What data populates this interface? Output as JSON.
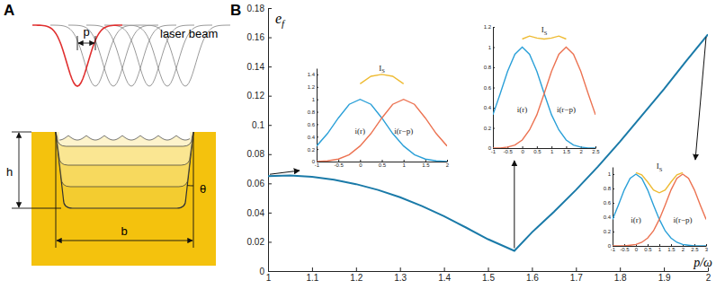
{
  "panel_labels": [
    "A",
    "B"
  ],
  "diagram": {
    "beam_label": "laser beam",
    "pitch": "p",
    "depth": "h",
    "angle": "θ",
    "width": "b"
  },
  "chart_data": [
    {
      "type": "line",
      "xlabel": "p/ω",
      "ylabel": "e",
      "ylabel_sub": "f",
      "x": [
        1,
        1.05,
        1.1,
        1.15,
        1.2,
        1.25,
        1.3,
        1.35,
        1.4,
        1.45,
        1.5,
        1.56,
        1.6,
        1.65,
        1.7,
        1.75,
        1.8,
        1.85,
        1.9,
        1.95,
        2
      ],
      "series": [
        {
          "color": "#1a7aa8",
          "values": [
            0.065,
            0.0655,
            0.0645,
            0.0625,
            0.0595,
            0.0555,
            0.0505,
            0.0445,
            0.0375,
            0.0298,
            0.0218,
            0.0138,
            0.0265,
            0.0405,
            0.0555,
            0.0715,
            0.0885,
            0.1065,
            0.1245,
            0.1435,
            0.162
          ]
        }
      ],
      "xlim": [
        1,
        2
      ],
      "ylim": [
        0,
        0.18
      ],
      "xticks": [
        1,
        1.1,
        1.2,
        1.3,
        1.4,
        1.5,
        1.6,
        1.7,
        1.8,
        1.9,
        2
      ],
      "yticks": [
        0,
        0.02,
        0.04,
        0.06,
        0.08,
        0.1,
        0.12,
        0.14,
        0.16,
        0.18
      ]
    },
    {
      "type": "line",
      "xlim": [
        -1,
        2
      ],
      "ylim": [
        0,
        1.5
      ],
      "xticks": [
        -1,
        -0.5,
        0,
        0.5,
        1,
        1.5,
        2
      ],
      "yticks": [
        0,
        0.2,
        0.4,
        0.6,
        0.8,
        1,
        1.2,
        1.4
      ],
      "series": [
        {
          "name": "i(r)",
          "color": "#2ba0d8",
          "x": [
            -1,
            -0.75,
            -0.5,
            -0.25,
            0,
            0.25,
            0.5,
            0.75,
            1,
            1.25,
            1.5,
            1.75,
            2
          ],
          "values": [
            0.25,
            0.45,
            0.7,
            0.92,
            1,
            0.92,
            0.7,
            0.45,
            0.25,
            0.11,
            0.04,
            0.01,
            0
          ]
        },
        {
          "name": "i(r−p)",
          "color": "#ec7352",
          "x": [
            -1,
            -0.75,
            -0.5,
            -0.25,
            0,
            0.25,
            0.5,
            0.75,
            1,
            1.25,
            1.5,
            1.75,
            2
          ],
          "values": [
            0,
            0.01,
            0.04,
            0.11,
            0.25,
            0.45,
            0.7,
            0.92,
            1,
            0.92,
            0.7,
            0.45,
            0.25
          ]
        },
        {
          "name": "I",
          "name_sub": "S",
          "color": "#eebb33",
          "x": [
            0,
            0.25,
            0.5,
            0.75,
            1
          ],
          "values": [
            1.25,
            1.37,
            1.4,
            1.37,
            1.25
          ]
        }
      ]
    },
    {
      "type": "line",
      "xlim": [
        -1,
        2.5
      ],
      "ylim": [
        0,
        1.2
      ],
      "xticks": [
        -1,
        -0.5,
        0,
        0.5,
        1,
        1.5,
        2,
        2.5
      ],
      "yticks": [
        0,
        0.2,
        0.4,
        0.6,
        0.8,
        1,
        1.2
      ],
      "series": [
        {
          "name": "i(r)",
          "color": "#2ba0d8",
          "x": [
            -1,
            -0.75,
            -0.5,
            -0.25,
            0,
            0.25,
            0.5,
            0.75,
            1,
            1.25,
            1.5,
            1.75,
            2,
            2.25,
            2.5
          ],
          "values": [
            0.33,
            0.54,
            0.76,
            0.93,
            1,
            0.93,
            0.76,
            0.54,
            0.33,
            0.18,
            0.08,
            0.03,
            0.01,
            0,
            0
          ]
        },
        {
          "name": "i(r−p)",
          "color": "#ec7352",
          "x": [
            -1,
            -0.75,
            -0.5,
            -0.25,
            0,
            0.25,
            0.5,
            0.75,
            1,
            1.25,
            1.5,
            1.75,
            2,
            2.25,
            2.5
          ],
          "values": [
            0,
            0,
            0.01,
            0.03,
            0.08,
            0.18,
            0.33,
            0.54,
            0.76,
            0.93,
            1,
            0.93,
            0.76,
            0.54,
            0.33
          ]
        },
        {
          "name": "I",
          "name_sub": "S",
          "color": "#eebb33",
          "x": [
            0,
            0.25,
            0.5,
            0.75,
            1,
            1.25,
            1.5
          ],
          "values": [
            1.08,
            1.11,
            1.09,
            1.08,
            1.09,
            1.11,
            1.08
          ]
        }
      ]
    },
    {
      "type": "line",
      "xlim": [
        -1,
        3
      ],
      "ylim": [
        0,
        1.1
      ],
      "xticks": [
        -1,
        -0.5,
        0,
        0.5,
        1,
        1.5,
        2,
        2.5,
        3
      ],
      "yticks": [
        0,
        0.2,
        0.4,
        0.6,
        0.8,
        1
      ],
      "series": [
        {
          "name": "i(r)",
          "color": "#2ba0d8",
          "x": [
            -1,
            -0.75,
            -0.5,
            -0.25,
            0,
            0.25,
            0.5,
            0.75,
            1,
            1.25,
            1.5,
            1.75,
            2,
            2.25,
            2.5,
            2.75,
            3
          ],
          "values": [
            0.37,
            0.57,
            0.78,
            0.94,
            1,
            0.94,
            0.78,
            0.57,
            0.37,
            0.21,
            0.11,
            0.05,
            0.02,
            0.01,
            0,
            0,
            0
          ]
        },
        {
          "name": "i(r−p)",
          "color": "#ec7352",
          "x": [
            -1,
            -0.75,
            -0.5,
            -0.25,
            0,
            0.25,
            0.5,
            0.75,
            1,
            1.25,
            1.5,
            1.75,
            2,
            2.25,
            2.5,
            2.75,
            3
          ],
          "values": [
            0,
            0,
            0,
            0.01,
            0.02,
            0.05,
            0.11,
            0.21,
            0.37,
            0.57,
            0.78,
            0.94,
            1,
            0.94,
            0.78,
            0.57,
            0.37
          ]
        },
        {
          "name": "I",
          "name_sub": "S",
          "color": "#eebb33",
          "x": [
            0,
            0.25,
            0.5,
            0.75,
            1,
            1.25,
            1.5,
            1.75,
            2
          ],
          "values": [
            1.02,
            0.99,
            0.89,
            0.78,
            0.74,
            0.78,
            0.89,
            0.99,
            1.02
          ]
        }
      ]
    }
  ]
}
